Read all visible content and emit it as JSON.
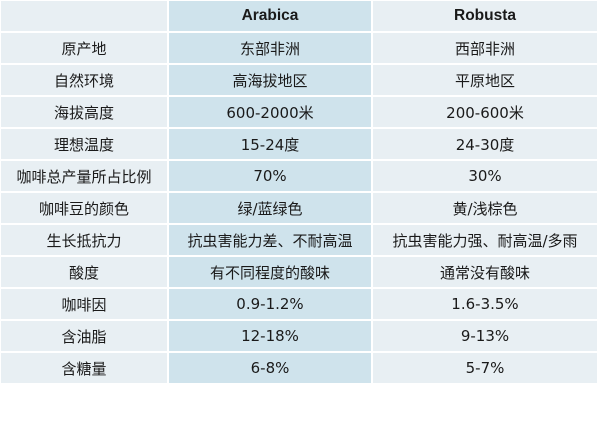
{
  "table": {
    "headers": [
      "",
      "Arabica",
      "Robusta"
    ],
    "rows": [
      [
        "原产地",
        "东部非洲",
        "西部非洲"
      ],
      [
        "自然环境",
        "高海拔地区",
        "平原地区"
      ],
      [
        "海拔高度",
        "600-2000米",
        "200-600米"
      ],
      [
        "理想温度",
        "15-24度",
        "24-30度"
      ],
      [
        "咖啡总产量所占比例",
        "70%",
        "30%"
      ],
      [
        "咖啡豆的颜色",
        "绿/蓝绿色",
        "黄/浅棕色"
      ],
      [
        "生长抵抗力",
        "抗虫害能力差、不耐高温",
        "抗虫害能力强、耐高温/多雨"
      ],
      [
        "酸度",
        "有不同程度的酸味",
        "通常没有酸味"
      ],
      [
        "咖啡因",
        "0.9-1.2%",
        "1.6-3.5%"
      ],
      [
        "含油脂",
        "12-18%",
        "9-13%"
      ],
      [
        "含糖量",
        "6-8%",
        "5-7%"
      ]
    ]
  },
  "colors": {
    "label_column": "#e8eff3",
    "arabica_column": "#cfe3ec",
    "robusta_column": "#e8eff3"
  }
}
